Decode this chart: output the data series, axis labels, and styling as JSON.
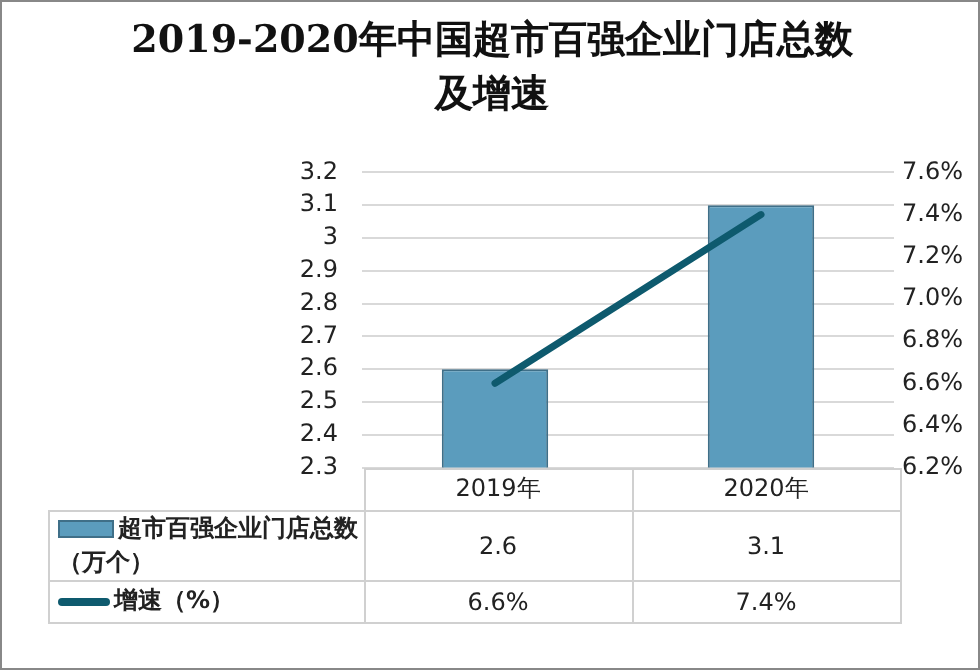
{
  "chart_data": {
    "type": "bar",
    "title": "2019-2020年中国超市百强企业门店总数及增速",
    "categories": [
      "2019年",
      "2020年"
    ],
    "series": [
      {
        "name": "超市百强企业门店总数（万个）",
        "color": "#5b9cbd",
        "values": [
          2.6,
          3.1
        ],
        "value_labels": [
          "2.6",
          "3.1"
        ]
      },
      {
        "name": "增速（%）",
        "type": "line",
        "axis": "y2",
        "color": "#0e5a6e",
        "values": [
          6.6,
          7.4
        ],
        "value_labels": [
          "6.6%",
          "7.4%"
        ]
      }
    ],
    "ylim": [
      2.3,
      3.2
    ],
    "yticks": [
      2.3,
      2.4,
      2.5,
      2.6,
      2.7,
      2.8,
      2.9,
      3,
      3.1,
      3.2
    ],
    "y2lim": [
      6.2,
      7.6
    ],
    "y2ticks": [
      {
        "value": 6.2,
        "label": "6.2%"
      },
      {
        "value": 6.4,
        "label": "6.4%"
      },
      {
        "value": 6.6,
        "label": "6.6%"
      },
      {
        "value": 6.8,
        "label": "6.8%"
      },
      {
        "value": 7.0,
        "label": "7.0%"
      },
      {
        "value": 7.2,
        "label": "7.2%"
      },
      {
        "value": 7.4,
        "label": "7.4%"
      },
      {
        "value": 7.6,
        "label": "7.6%"
      }
    ],
    "grid": "y",
    "legend": "bottom",
    "marker": "none",
    "line_style": "solid"
  }
}
